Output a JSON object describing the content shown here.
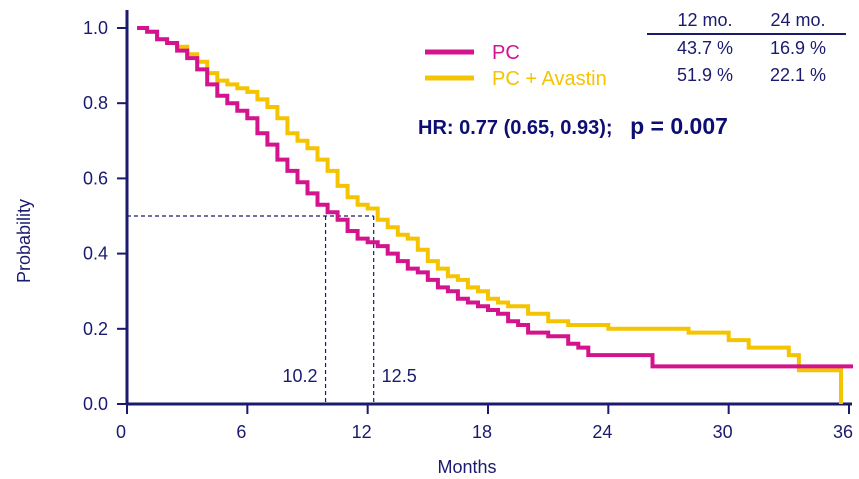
{
  "colors": {
    "axis": "#1a1a6e",
    "pc": "#d4148c",
    "pc_avastin": "#f5c400"
  },
  "chart_data": {
    "type": "line",
    "title": "",
    "xlabel": "Months",
    "ylabel": "Probability",
    "xlim": [
      0,
      36
    ],
    "ylim": [
      0,
      1.0
    ],
    "x_ticks": [
      "0",
      "6",
      "12",
      "18",
      "24",
      "30",
      "36"
    ],
    "y_ticks": [
      "0.0",
      "0.2",
      "0.4",
      "0.6",
      "0.8",
      "1.0"
    ],
    "grid": false,
    "legend_position": "top-center",
    "series": [
      {
        "name": "PC",
        "color": "#d4148c",
        "x": [
          0.5,
          1.0,
          1.5,
          2.0,
          2.5,
          3.0,
          3.5,
          4.0,
          4.5,
          5.0,
          5.5,
          6.0,
          6.5,
          7.0,
          7.5,
          8.0,
          8.5,
          9.0,
          9.5,
          10.0,
          10.5,
          11.0,
          11.5,
          12.0,
          12.5,
          13.0,
          13.5,
          14.0,
          14.5,
          15.0,
          15.5,
          16.0,
          16.5,
          17.0,
          17.5,
          18.0,
          18.5,
          19.0,
          19.5,
          20.0,
          21.0,
          22.0,
          22.5,
          23.0,
          26.2,
          35.8,
          36.2
        ],
        "y": [
          1.0,
          0.99,
          0.97,
          0.96,
          0.94,
          0.92,
          0.89,
          0.85,
          0.82,
          0.8,
          0.78,
          0.76,
          0.72,
          0.69,
          0.65,
          0.62,
          0.59,
          0.56,
          0.53,
          0.51,
          0.49,
          0.46,
          0.44,
          0.43,
          0.42,
          0.4,
          0.38,
          0.36,
          0.35,
          0.33,
          0.31,
          0.3,
          0.28,
          0.27,
          0.26,
          0.25,
          0.24,
          0.22,
          0.21,
          0.19,
          0.18,
          0.16,
          0.15,
          0.13,
          0.1,
          0.1,
          0.1
        ]
      },
      {
        "name": "PC + Avastin",
        "color": "#f5c400",
        "x": [
          0.5,
          1.0,
          1.5,
          2.0,
          2.5,
          3.0,
          3.5,
          4.0,
          4.5,
          5.0,
          5.5,
          6.0,
          6.5,
          7.0,
          7.5,
          8.0,
          8.5,
          9.0,
          9.5,
          10.0,
          10.5,
          11.0,
          11.5,
          12.0,
          12.5,
          13.0,
          13.5,
          14.0,
          14.5,
          15.0,
          15.5,
          16.0,
          16.5,
          17.0,
          17.5,
          18.0,
          18.5,
          19.0,
          20.0,
          21.0,
          22.0,
          24.0,
          28.0,
          30.0,
          31.0,
          33.0,
          33.5,
          35.5,
          35.6
        ],
        "y": [
          1.0,
          0.99,
          0.97,
          0.96,
          0.95,
          0.93,
          0.91,
          0.88,
          0.86,
          0.85,
          0.84,
          0.83,
          0.81,
          0.79,
          0.76,
          0.72,
          0.7,
          0.68,
          0.65,
          0.62,
          0.58,
          0.55,
          0.53,
          0.52,
          0.49,
          0.47,
          0.45,
          0.44,
          0.41,
          0.38,
          0.36,
          0.34,
          0.33,
          0.31,
          0.3,
          0.28,
          0.27,
          0.26,
          0.24,
          0.22,
          0.21,
          0.2,
          0.19,
          0.17,
          0.15,
          0.13,
          0.09,
          0.09,
          0.0
        ]
      }
    ],
    "median_reference_y": 0.5,
    "medians": [
      {
        "label": "10.2",
        "x": 9.9
      },
      {
        "label": "12.5",
        "x": 12.3
      }
    ],
    "annotations": {
      "hr_text": "HR: 0.77 (0.65, 0.93);",
      "p_text": "p = 0.007"
    },
    "survival_table": {
      "headers": [
        "12 mo.",
        "24 mo."
      ],
      "rows": [
        [
          "43.7 %",
          "16.9 %"
        ],
        [
          "51.9 %",
          "22.1 %"
        ]
      ]
    }
  }
}
